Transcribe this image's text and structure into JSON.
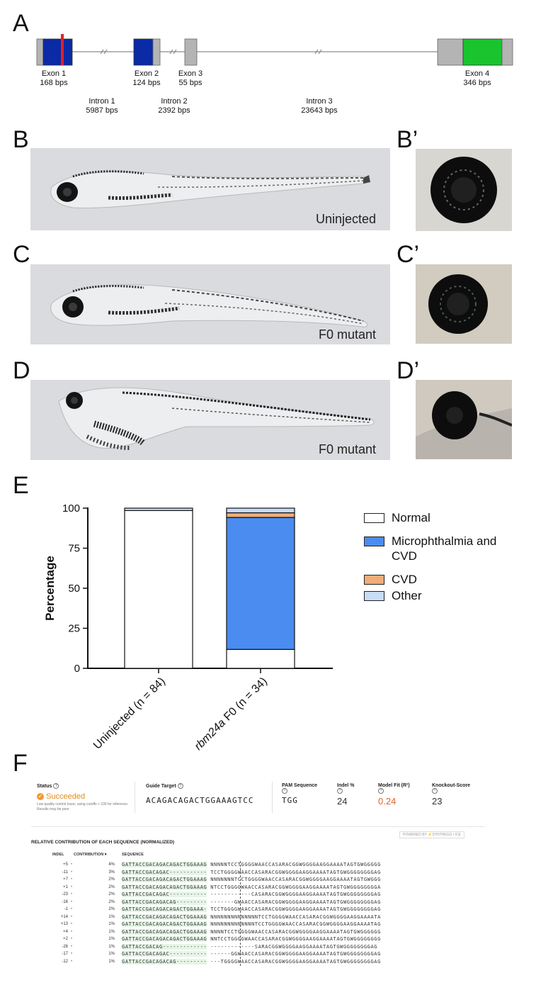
{
  "panels": {
    "a": "A",
    "b": "B",
    "b_prime": "B’",
    "c": "C",
    "c_prime": "C’",
    "d": "D",
    "d_prime": "D’",
    "e": "E",
    "f": "F"
  },
  "gene": {
    "exons": [
      {
        "name": "Exon 1",
        "size": "168 bps"
      },
      {
        "name": "Exon 2",
        "size": "124 bps"
      },
      {
        "name": "Exon 3",
        "size": "55 bps"
      },
      {
        "name": "Exon 4",
        "size": "346 bps"
      }
    ],
    "introns": [
      {
        "name": "Intron 1",
        "size": "5987 bps"
      },
      {
        "name": "Intron 2",
        "size": "2392 bps"
      },
      {
        "name": "Intron 3",
        "size": "23643 bps"
      }
    ],
    "colors": {
      "coding": "#0a2aa6",
      "utr": "#b4b4b4",
      "exon4": "#19c42e",
      "target": "#e0202a",
      "line": "#888888"
    }
  },
  "photos": {
    "b_label": "Uninjected",
    "c_label": "F0 mutant",
    "d_label": "F0 mutant"
  },
  "chart_data": {
    "type": "bar",
    "stacked": true,
    "ylabel": "Percentage",
    "ylim": [
      0,
      100
    ],
    "yticks": [
      "0",
      "25",
      "50",
      "75",
      "100"
    ],
    "categories": [
      "Uninjected (n = 84)",
      "rbm24a F0 (n = 34)"
    ],
    "series": [
      {
        "name": "Normal",
        "color": "#ffffff",
        "values": [
          98.5,
          11.8
        ]
      },
      {
        "name": "Microphthalmia and CVD",
        "color": "#4a8cf0",
        "values": [
          0,
          82.4
        ]
      },
      {
        "name": "CVD",
        "color": "#f0ad78",
        "values": [
          0,
          2.9
        ]
      },
      {
        "name": "Other",
        "color": "#c8dcf6",
        "values": [
          1.5,
          2.9
        ]
      }
    ],
    "legend_position": "right",
    "grid": false
  },
  "ice": {
    "status_label": "Status",
    "status_value": "Succeeded",
    "status_note": "Low quality control trace; using cutoffs < 100 for inference. Results may be poor",
    "guide_label": "Guide Target",
    "guide_value": "ACAGACAGACTGGAAAGTCC",
    "pam_label": "PAM Sequence",
    "pam_value": "TGG",
    "indel_label": "Indel %",
    "indel_value": "24",
    "fit_label": "Model Fit (R²)",
    "fit_value": "0.24",
    "ko_label": "Knockout-Score",
    "ko_value": "23",
    "brand": "POWERED BY ⚡SYNTHEGO | ICE",
    "section_title": "RELATIVE CONTRIBUTION OF EACH SEQUENCE (NORMALIZED)",
    "col_indel": "INDEL",
    "col_contribution": "CONTRIBUTION ▾",
    "col_sequence": "SEQUENCE",
    "rows": [
      {
        "indel": "+5",
        "pct": "4%",
        "left": "GATTACCGACAGACAGACTGGAAAG",
        "right": "NNNNNTCCTGGGGWAACCASARACGGWGGGGAAGGAAAATAGTGWGGGGG"
      },
      {
        "indel": "-11",
        "pct": "3%",
        "left": "GATTACCGACAGAC-----------",
        "right": "TCCTGGGGWAACCASARACGGWGGGGAAGGAAAATAGTGWGGGGGGGGAG"
      },
      {
        "indel": "+7",
        "pct": "2%",
        "left": "GATTACCGACAGACAGACTGGAAAG",
        "right": "NNNNNNNTCCTGGGGWAACCASARACGGWGGGGAAGGAAAATAGTGWGGG"
      },
      {
        "indel": "+1",
        "pct": "2%",
        "left": "GATTACCGACAGACAGACTGGAAAG",
        "right": "NTCCTGGGGWAACCASARACGGWGGGGAAGGAAAATAGTGWGGGGGGGGA"
      },
      {
        "indel": "-23",
        "pct": "2%",
        "left": "GATTACCGACAGAC-----------",
        "right": "------------CASARACGGWGGGGAAGGAAAATAGTGWGGGGGGGGAG"
      },
      {
        "indel": "-16",
        "pct": "2%",
        "left": "GATTACCGACAGACAG---------",
        "right": "-------GWAACCASARACGGWGGGGAAGGAAAATAGTGWGGGGGGGGAG"
      },
      {
        "indel": "-1",
        "pct": "2%",
        "left": "GATTACCGACAGACAGACTGGAAA-",
        "right": "TCCTGGGGWAACCASARACGGWGGGGAAGGAAAATAGTGWGGGGGGGGAG"
      },
      {
        "indel": "+14",
        "pct": "1%",
        "left": "GATTACCGACAGACAGACTGGAAAG",
        "right": "NNNNNNNNNNNNNNTCCTGGGGWAACCASARACGGWGGGGAAGGAAAATA"
      },
      {
        "indel": "+13",
        "pct": "1%",
        "left": "GATTACCGACAGACAGACTGGAAAG",
        "right": "NNNNNNNNNNNNNTCCTGGGGWAACCASARACGGWGGGGAAGGAAAATAG"
      },
      {
        "indel": "+4",
        "pct": "1%",
        "left": "GATTACCGACAGACAGACTGGAAAG",
        "right": "NNNNTCCTGGGGWAACCASARACGGWGGGGAAGGAAAATAGTGWGGGGGG"
      },
      {
        "indel": "+2",
        "pct": "1%",
        "left": "GATTACCGACAGACAGACTGGAAAG",
        "right": "NNTCCTGGGGWAACCASARACGGWGGGGAAGGAAAATAGTGWGGGGGGGG"
      },
      {
        "indel": "-26",
        "pct": "1%",
        "left": "GATTACCGACAG-------------",
        "right": "-------------SARACGGWGGGGAAGGAAAATAGTGWGGGGGGGGAG"
      },
      {
        "indel": "-17",
        "pct": "1%",
        "left": "GATTACCGACAGAC-----------",
        "right": "------GGWAACCASARACGGWGGGGAAGGAAAATAGTGWGGGGGGGGAG"
      },
      {
        "indel": "-12",
        "pct": "1%",
        "left": "GATTACCGACAGACAG---------",
        "right": "---TGGGGWAACCASARACGGWGGGGAAGGAAAATAGTGWGGGGGGGGAG"
      }
    ]
  }
}
